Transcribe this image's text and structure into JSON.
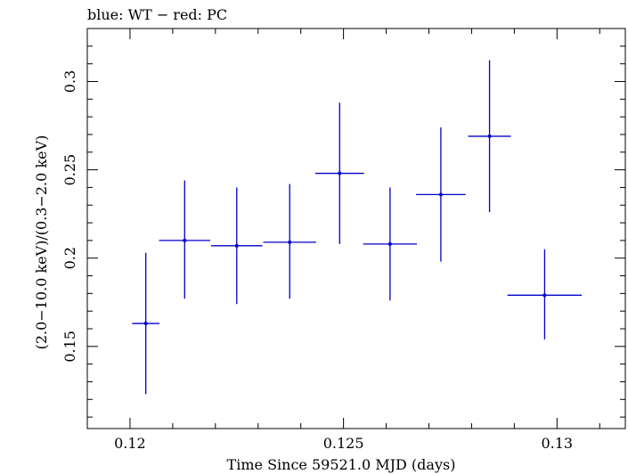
{
  "chart_data": {
    "type": "scatter",
    "title": "blue: WT − red: PC",
    "xlabel": "Time Since 59521.0 MJD (days)",
    "ylabel": "(2.0−10.0 keV)/(0.3−2.0 keV)",
    "xlim": [
      0.119,
      0.1316
    ],
    "ylim": [
      0.1035,
      0.33
    ],
    "x_ticks": [
      0.12,
      0.125,
      0.13
    ],
    "x_tick_labels": [
      "0.12",
      "0.125",
      "0.13"
    ],
    "y_ticks": [
      0.15,
      0.2,
      0.25,
      0.3
    ],
    "y_tick_labels": [
      "0.15",
      "0.2",
      "0.25",
      "0.3"
    ],
    "grid": false,
    "colors": {
      "series": "#0000cc",
      "axes": "#000000"
    },
    "series": [
      {
        "points": [
          {
            "x": 0.12037,
            "xerr_low": 0.00032,
            "xerr_high": 0.00032,
            "y": 0.163,
            "yerr_low": 0.04,
            "yerr_high": 0.04
          },
          {
            "x": 0.12128,
            "xerr_low": 0.0006,
            "xerr_high": 0.0006,
            "y": 0.21,
            "yerr_low": 0.033,
            "yerr_high": 0.034
          },
          {
            "x": 0.1225,
            "xerr_low": 0.0006,
            "xerr_high": 0.0006,
            "y": 0.207,
            "yerr_low": 0.033,
            "yerr_high": 0.033
          },
          {
            "x": 0.12374,
            "xerr_low": 0.00062,
            "xerr_high": 0.00062,
            "y": 0.209,
            "yerr_low": 0.032,
            "yerr_high": 0.033
          },
          {
            "x": 0.12491,
            "xerr_low": 0.00057,
            "xerr_high": 0.00057,
            "y": 0.248,
            "yerr_low": 0.04,
            "yerr_high": 0.04
          },
          {
            "x": 0.12609,
            "xerr_low": 0.00063,
            "xerr_high": 0.00063,
            "y": 0.208,
            "yerr_low": 0.032,
            "yerr_high": 0.032
          },
          {
            "x": 0.12728,
            "xerr_low": 0.00058,
            "xerr_high": 0.00058,
            "y": 0.236,
            "yerr_low": 0.038,
            "yerr_high": 0.038
          },
          {
            "x": 0.12842,
            "xerr_low": 0.0005,
            "xerr_high": 0.0005,
            "y": 0.269,
            "yerr_low": 0.043,
            "yerr_high": 0.043
          },
          {
            "x": 0.12971,
            "xerr_low": 0.00087,
            "xerr_high": 0.00087,
            "y": 0.179,
            "yerr_low": 0.025,
            "yerr_high": 0.026
          }
        ]
      }
    ]
  }
}
